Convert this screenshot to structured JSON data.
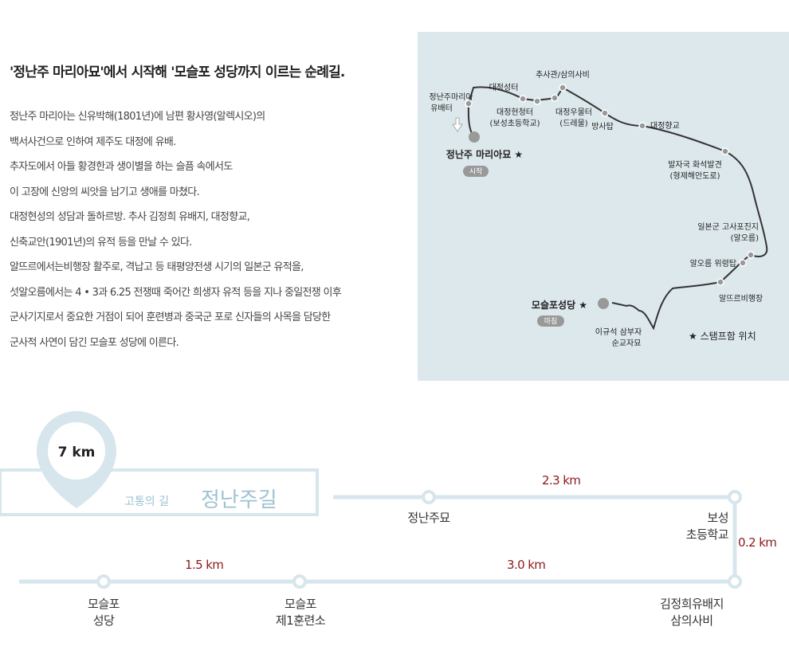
{
  "intro": {
    "title": "'정난주 마리아묘'에서 시작해 '모슬포 성당까지 이르는 순례길.",
    "paragraphs": [
      "정난주 마리아는 신유박해(1801년)에 남편 황사영(알렉시오)의",
      "백서사건으로 인하여  제주도 대정에 유배.",
      "추자도에서 아들 황경한과 생이별을 하는 슬픔 속에서도",
      "이 고장에 신앙의 씨앗을 남기고 생애를 마쳤다.",
      "대정현성의 성담과 돌하르방. 추사 김정희 유배지, 대정향교,",
      "신축교안(1901년)의 유적 등을 만날 수 있다.",
      "알뜨르에서는비행장 활주로, 격납고 등 태평양전생 시기의 일본군 유적을,",
      "섯알오름에서는 4 • 3과 6.25 전쟁때 죽어간 희생자 유적 등을 지나 중일전쟁 이후",
      "군사기지로서 중요한 거점이 되어 훈련병과 중국군 포로 신자들의 사목을 담당한",
      "군사적 사연이 담긴 모슬포 성당에 이른다."
    ]
  },
  "map": {
    "start_name": "정난주 마리아묘 ★",
    "start_badge": "시작",
    "end_name": "모슬포성당 ★",
    "end_badge": "마침",
    "places": {
      "memorial": [
        "정난주마리아",
        "유배터"
      ],
      "castle": "대정성터",
      "chusa": "추사관/삼의사비",
      "hyeonchung": [
        "대정현청터",
        "(보성초등학교)"
      ],
      "umul": [
        "대정우물터",
        "(드레물)"
      ],
      "bangsatap": "방사탑",
      "hyanggyo": "대정향교",
      "fossil": [
        "발자국 화석발견",
        "(형제해안도로)"
      ],
      "japanese_battery": [
        "일본군 고사포진지",
        "(알오름)"
      ],
      "memorial_tower": "알오름 위령탑",
      "airfield": "알뜨르비행장",
      "martyr_tomb": [
        "이규석 삼부자",
        "순교자묘"
      ]
    },
    "legend": "★ 스탬프함 위치"
  },
  "course": {
    "distance": "7 km",
    "subtitle": "고통의 길",
    "name": "정난주길",
    "stops": {
      "jeongnanju": "정난주묘",
      "boseong": [
        "보성",
        "초등학교"
      ],
      "kimjeonghui": [
        "김정희유배지",
        "삼의사비"
      ],
      "mosulpo_training": [
        "모슬포",
        "제1훈련소"
      ],
      "mosulpo_church": [
        "모슬포",
        "성당"
      ]
    },
    "segments": {
      "seg1": "2.3 km",
      "seg2": "0.2 km",
      "seg3": "3.0 km",
      "seg4": "1.5 km"
    },
    "colors": {
      "line": "#d7e6ec",
      "accent": "#8b1a1a",
      "dot": "#999999"
    }
  }
}
